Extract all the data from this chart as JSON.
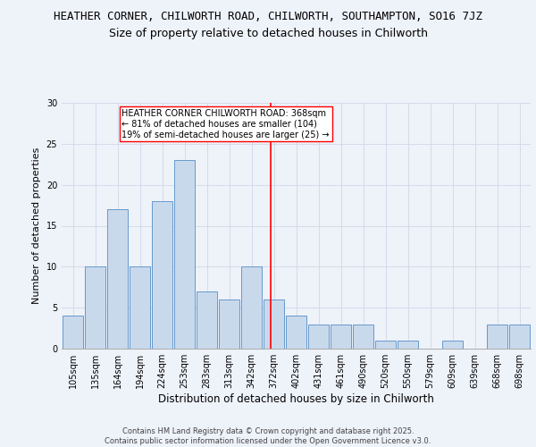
{
  "title": "HEATHER CORNER, CHILWORTH ROAD, CHILWORTH, SOUTHAMPTON, SO16 7JZ",
  "subtitle": "Size of property relative to detached houses in Chilworth",
  "xlabel": "Distribution of detached houses by size in Chilworth",
  "ylabel": "Number of detached properties",
  "categories": [
    "105sqm",
    "135sqm",
    "164sqm",
    "194sqm",
    "224sqm",
    "253sqm",
    "283sqm",
    "313sqm",
    "342sqm",
    "372sqm",
    "402sqm",
    "431sqm",
    "461sqm",
    "490sqm",
    "520sqm",
    "550sqm",
    "579sqm",
    "609sqm",
    "639sqm",
    "668sqm",
    "698sqm"
  ],
  "values": [
    4,
    10,
    17,
    10,
    18,
    23,
    7,
    6,
    10,
    6,
    4,
    3,
    3,
    3,
    1,
    1,
    0,
    1,
    0,
    3,
    3
  ],
  "bar_color": "#c9d9ec",
  "bar_edge_color": "#6699cc",
  "grid_color": "#d0d8e8",
  "vline_color": "red",
  "annotation_text": "HEATHER CORNER CHILWORTH ROAD: 368sqm\n← 81% of detached houses are smaller (104)\n19% of semi-detached houses are larger (25) →",
  "annotation_box_color": "white",
  "annotation_box_edge": "red",
  "ylim": [
    0,
    30
  ],
  "yticks": [
    0,
    5,
    10,
    15,
    20,
    25,
    30
  ],
  "footer": "Contains HM Land Registry data © Crown copyright and database right 2025.\nContains public sector information licensed under the Open Government Licence v3.0.",
  "bg_color": "#eef2f9",
  "title_fontsize": 9,
  "subtitle_fontsize": 9,
  "footer_fontsize": 6,
  "ylabel_fontsize": 8,
  "xlabel_fontsize": 8.5,
  "tick_fontsize": 7,
  "annot_fontsize": 7
}
